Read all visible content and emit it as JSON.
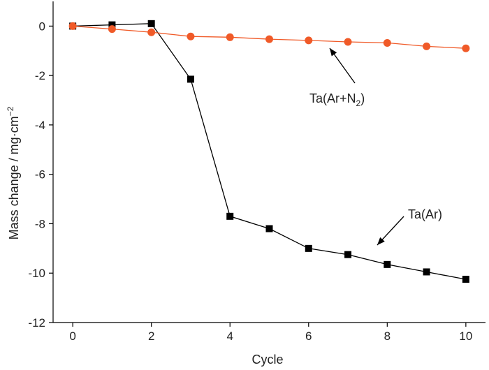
{
  "chart_data": {
    "type": "line",
    "xlabel": "Cycle",
    "ylabel": {
      "main": "Mass change / mg·cm",
      "sup": "−2"
    },
    "xlim": [
      -0.5,
      10.5
    ],
    "ylim": [
      -12,
      1
    ],
    "xticks": [
      0,
      2,
      4,
      6,
      8,
      10
    ],
    "yticks": [
      0,
      -2,
      -4,
      -6,
      -8,
      -10,
      -12
    ],
    "grid": false,
    "series": [
      {
        "name": "Ta(Ar)",
        "color": "#000000",
        "marker": "square",
        "x": [
          0,
          1,
          2,
          3,
          4,
          5,
          6,
          7,
          8,
          9,
          10
        ],
        "y": [
          0,
          0.05,
          0.1,
          -2.15,
          -7.7,
          -8.2,
          -9.0,
          -9.25,
          -9.65,
          -9.95,
          -10.25
        ]
      },
      {
        "name": "Ta(Ar+N2)",
        "color": "#f05a28",
        "marker": "circle",
        "x": [
          0,
          1,
          2,
          3,
          4,
          5,
          6,
          7,
          8,
          9,
          10
        ],
        "y": [
          0,
          -0.12,
          -0.25,
          -0.42,
          -0.45,
          -0.53,
          -0.58,
          -0.64,
          -0.68,
          -0.82,
          -0.9
        ]
      }
    ],
    "annotations": [
      {
        "text_main": "Ta(Ar+N",
        "text_sub": "2",
        "text_tail": ")",
        "series": "Ta(Ar+N2)",
        "arrow_to": [
          6.6,
          -0.9
        ]
      },
      {
        "text_main": "Ta(Ar)",
        "series": "Ta(Ar)",
        "arrow_to": [
          7.7,
          -8.9
        ]
      }
    ]
  }
}
